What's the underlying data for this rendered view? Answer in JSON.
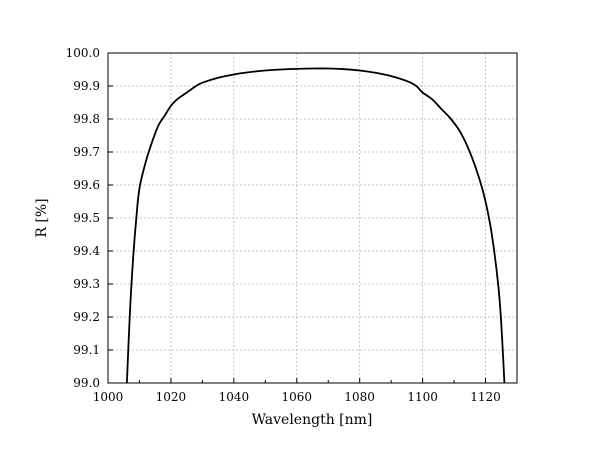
{
  "chart_data": {
    "type": "line",
    "title": "",
    "xlabel": "Wavelength [nm]",
    "ylabel": "R [%]",
    "xlim": [
      1000,
      1130
    ],
    "ylim": [
      99.0,
      100.0
    ],
    "grid": true,
    "x_ticks": [
      1000,
      1020,
      1040,
      1060,
      1080,
      1100,
      1120
    ],
    "x_tick_labels": [
      "1000",
      "1020",
      "1040",
      "1060",
      "1080",
      "1100",
      "1120"
    ],
    "y_ticks": [
      99.0,
      99.1,
      99.2,
      99.3,
      99.4,
      99.5,
      99.6,
      99.7,
      99.8,
      99.9,
      100.0
    ],
    "y_tick_labels": [
      "99.0",
      "99.1",
      "99.2",
      "99.3",
      "99.4",
      "99.5",
      "99.6",
      "99.7",
      "99.8",
      "99.9",
      "100.0"
    ],
    "series": [
      {
        "x": [
          1006.0,
          1007.0,
          1008.0,
          1009.0,
          1010.0,
          1012.0,
          1014.0,
          1016.0,
          1018.0,
          1020.0,
          1022.0,
          1025.0,
          1028.0,
          1030.0,
          1035.0,
          1040.0,
          1045.0,
          1050.0,
          1055.0,
          1060.0,
          1065.0,
          1070.0,
          1075.0,
          1080.0,
          1085.0,
          1090.0,
          1095.0,
          1098.0,
          1100.0,
          1103.0,
          1106.0,
          1109.0,
          1112.0,
          1115.0,
          1118.0,
          1120.0,
          1122.0,
          1124.0,
          1125.0,
          1126.0
        ],
        "y": [
          99.0,
          99.22,
          99.38,
          99.5,
          99.59,
          99.67,
          99.73,
          99.78,
          99.81,
          99.84,
          99.86,
          99.88,
          99.9,
          99.91,
          99.925,
          99.935,
          99.942,
          99.947,
          99.95,
          99.952,
          99.953,
          99.953,
          99.951,
          99.947,
          99.94,
          99.93,
          99.915,
          99.9,
          99.88,
          99.86,
          99.83,
          99.8,
          99.76,
          99.7,
          99.62,
          99.55,
          99.45,
          99.3,
          99.18,
          99.0
        ],
        "color": "#000000"
      }
    ]
  }
}
